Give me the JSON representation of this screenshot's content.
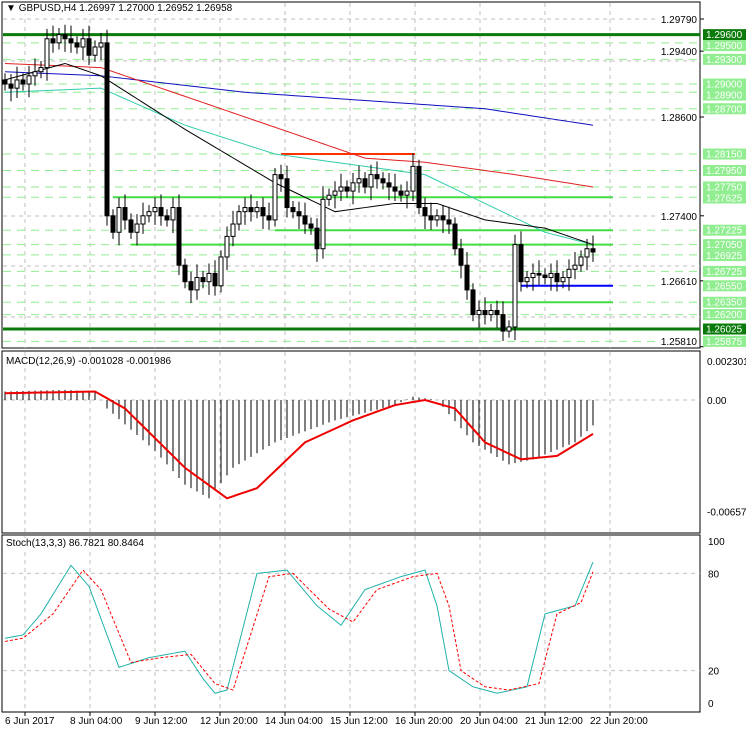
{
  "header": {
    "symbol": "GBPUSD,H4",
    "open": "1.26997",
    "high": "1.27000",
    "low": "1.26952",
    "close": "1.26958"
  },
  "colors": {
    "bull": "#ffffff",
    "bear": "#000000",
    "level_dark": "#0a7a0a",
    "level": "#44dd44",
    "label_bg": "#90ee90",
    "blue_ma": "#1010c0",
    "red_ma": "#e02020",
    "green_ma": "#33ccaa",
    "black_ma": "#000000"
  },
  "price_axis": {
    "ticks": [
      "1.29790",
      "1.29400",
      "1.28600",
      "1.27400",
      "1.26610",
      "1.25810"
    ],
    "labels": [
      {
        "v": "1.29600",
        "dark": true
      },
      {
        "v": "1.29500"
      },
      {
        "v": "1.29300"
      },
      {
        "v": "1.29000"
      },
      {
        "v": "1.28900"
      },
      {
        "v": "1.28700"
      },
      {
        "v": "1.28150"
      },
      {
        "v": "1.27950"
      },
      {
        "v": "1.27750"
      },
      {
        "v": "1.27625"
      },
      {
        "v": "1.27225"
      },
      {
        "v": "1.27050"
      },
      {
        "v": "1.26925"
      },
      {
        "v": "1.26725"
      },
      {
        "v": "1.26550"
      },
      {
        "v": "1.26350"
      },
      {
        "v": "1.26200"
      },
      {
        "v": "1.26025",
        "dark": true
      },
      {
        "v": "1.25875"
      }
    ]
  },
  "levels": [
    {
      "p": 1.296,
      "from": 0,
      "to": 116,
      "c": "dark"
    },
    {
      "p": 1.26025,
      "from": 0,
      "to": 116,
      "c": "dark"
    },
    {
      "p": 1.27625,
      "from": 18,
      "to": 101,
      "c": "green"
    },
    {
      "p": 1.27225,
      "from": 45,
      "to": 101,
      "c": "green"
    },
    {
      "p": 1.2705,
      "from": 21,
      "to": 101,
      "c": "green"
    },
    {
      "p": 1.2635,
      "from": 80,
      "to": 101,
      "c": "green"
    },
    {
      "p": 1.2655,
      "from": 86,
      "to": 101,
      "c": "blue"
    },
    {
      "p": 1.2815,
      "from": 46,
      "to": 68,
      "c": "red"
    }
  ],
  "closes": [
    1.29,
    1.2895,
    1.2905,
    1.29,
    1.291,
    1.2915,
    1.292,
    1.2955,
    1.295,
    1.296,
    1.2955,
    1.295,
    1.2945,
    1.2955,
    1.2935,
    1.2945,
    1.295,
    1.274,
    1.272,
    1.275,
    1.2735,
    1.272,
    1.273,
    1.274,
    1.2745,
    1.275,
    1.274,
    1.2735,
    1.275,
    1.268,
    1.266,
    1.265,
    1.2665,
    1.266,
    1.267,
    1.2655,
    1.269,
    1.2715,
    1.273,
    1.2745,
    1.275,
    1.2745,
    1.275,
    1.274,
    1.2735,
    1.279,
    1.2785,
    1.275,
    1.2745,
    1.274,
    1.273,
    1.2725,
    1.27,
    1.276,
    1.2765,
    1.277,
    1.2775,
    1.277,
    1.278,
    1.2785,
    1.2775,
    1.279,
    1.2785,
    1.278,
    1.2775,
    1.277,
    1.2765,
    1.277,
    1.28,
    1.275,
    1.274,
    1.2735,
    1.274,
    1.2735,
    1.273,
    1.27,
    1.268,
    1.265,
    1.262,
    1.2625,
    1.262,
    1.2625,
    1.262,
    1.26,
    1.2605,
    1.2705,
    1.266,
    1.2665,
    1.267,
    1.2668,
    1.2665,
    1.267,
    1.266,
    1.2665,
    1.2675,
    1.268,
    1.269,
    1.27,
    1.2696
  ],
  "ma": {
    "blue": [
      [
        0,
        1.2915
      ],
      [
        16,
        1.291
      ],
      [
        40,
        1.289
      ],
      [
        60,
        1.288
      ],
      [
        80,
        1.287
      ],
      [
        98,
        1.285
      ]
    ],
    "red": [
      [
        0,
        1.2925
      ],
      [
        16,
        1.292
      ],
      [
        40,
        1.286
      ],
      [
        60,
        1.281
      ],
      [
        70,
        1.2805
      ],
      [
        85,
        1.279
      ],
      [
        98,
        1.2775
      ]
    ],
    "green": [
      [
        0,
        1.289
      ],
      [
        16,
        1.2895
      ],
      [
        30,
        1.285
      ],
      [
        45,
        1.2815
      ],
      [
        60,
        1.28
      ],
      [
        70,
        1.279
      ],
      [
        80,
        1.2755
      ],
      [
        90,
        1.272
      ],
      [
        98,
        1.2705
      ]
    ],
    "black": [
      [
        0,
        1.2905
      ],
      [
        10,
        1.2925
      ],
      [
        16,
        1.291
      ],
      [
        30,
        1.2845
      ],
      [
        45,
        1.278
      ],
      [
        55,
        1.2745
      ],
      [
        65,
        1.2755
      ],
      [
        72,
        1.2755
      ],
      [
        80,
        1.2735
      ],
      [
        90,
        1.2725
      ],
      [
        98,
        1.2705
      ]
    ]
  },
  "macd": {
    "label": "MACD(12,26,9) -0.001028 -0.001986",
    "ticks": [
      "0.002301",
      "0.00",
      "-0.006571"
    ],
    "hist": [
      [
        0,
        0.0005
      ],
      [
        10,
        0.0006
      ],
      [
        15,
        0.0005
      ],
      [
        17,
        -0.0005
      ],
      [
        25,
        -0.003
      ],
      [
        30,
        -0.005
      ],
      [
        34,
        -0.0058
      ],
      [
        38,
        -0.004
      ],
      [
        45,
        -0.0025
      ],
      [
        55,
        -0.0012
      ],
      [
        65,
        -0.0003
      ],
      [
        68,
        0.0002
      ],
      [
        72,
        0
      ],
      [
        78,
        -0.0025
      ],
      [
        84,
        -0.0038
      ],
      [
        88,
        -0.0035
      ],
      [
        95,
        -0.0025
      ],
      [
        98,
        -0.0015
      ]
    ],
    "signal": [
      [
        0,
        0.0004
      ],
      [
        15,
        0.0005
      ],
      [
        20,
        -0.0005
      ],
      [
        30,
        -0.004
      ],
      [
        37,
        -0.0058
      ],
      [
        42,
        -0.0052
      ],
      [
        50,
        -0.0025
      ],
      [
        58,
        -0.0012
      ],
      [
        65,
        -0.0003
      ],
      [
        70,
        0
      ],
      [
        75,
        -0.0005
      ],
      [
        80,
        -0.0025
      ],
      [
        86,
        -0.0035
      ],
      [
        92,
        -0.0033
      ],
      [
        98,
        -0.002
      ]
    ]
  },
  "stoch": {
    "label": "Stoch(13,3,3) 86.7821 80.8464",
    "ticks": [
      "100",
      "80",
      "20",
      "0"
    ],
    "main": [
      [
        0,
        40
      ],
      [
        3,
        42
      ],
      [
        6,
        55
      ],
      [
        11,
        85
      ],
      [
        14,
        72
      ],
      [
        19,
        22
      ],
      [
        24,
        28
      ],
      [
        30,
        32
      ],
      [
        33,
        15
      ],
      [
        35,
        6
      ],
      [
        37,
        8
      ],
      [
        42,
        80
      ],
      [
        47,
        82
      ],
      [
        52,
        60
      ],
      [
        56,
        48
      ],
      [
        60,
        70
      ],
      [
        66,
        78
      ],
      [
        70,
        82
      ],
      [
        72,
        60
      ],
      [
        74,
        20
      ],
      [
        78,
        10
      ],
      [
        82,
        6
      ],
      [
        87,
        10
      ],
      [
        90,
        55
      ],
      [
        95,
        60
      ],
      [
        98,
        87
      ]
    ],
    "signal": [
      [
        0,
        38
      ],
      [
        3,
        40
      ],
      [
        8,
        55
      ],
      [
        13,
        82
      ],
      [
        16,
        70
      ],
      [
        21,
        25
      ],
      [
        26,
        28
      ],
      [
        31,
        30
      ],
      [
        35,
        12
      ],
      [
        38,
        8
      ],
      [
        44,
        78
      ],
      [
        48,
        80
      ],
      [
        54,
        58
      ],
      [
        58,
        50
      ],
      [
        62,
        70
      ],
      [
        68,
        78
      ],
      [
        72,
        80
      ],
      [
        74,
        60
      ],
      [
        76,
        20
      ],
      [
        80,
        10
      ],
      [
        84,
        8
      ],
      [
        89,
        12
      ],
      [
        92,
        55
      ],
      [
        96,
        62
      ],
      [
        98,
        81
      ]
    ]
  },
  "time_axis": [
    "6 Jun 2017",
    "8 Jun 04:00",
    "9 Jun 12:00",
    "12 Jun 20:00",
    "14 Jun 04:00",
    "15 Jun 12:00",
    "16 Jun 20:00",
    "20 Jun 04:00",
    "21 Jun 12:00",
    "22 Jun 20:00"
  ]
}
